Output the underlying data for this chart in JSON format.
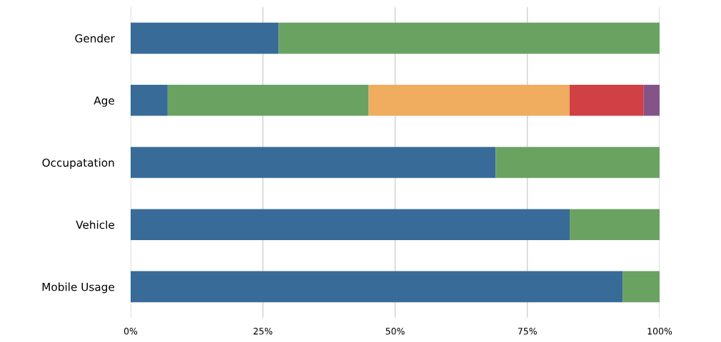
{
  "chart_data": {
    "type": "bar",
    "orientation": "horizontal",
    "stacked": true,
    "categories": [
      "Gender",
      "Age",
      "Occupatation",
      "Vehicle",
      "Mobile Usage"
    ],
    "series": [
      {
        "color": "#386b98",
        "values": [
          28,
          7,
          69,
          83,
          93
        ]
      },
      {
        "color": "#6aa262",
        "values": [
          72,
          38,
          31,
          17,
          7
        ]
      },
      {
        "color": "#f0ac5f",
        "values": [
          null,
          38,
          null,
          null,
          null
        ]
      },
      {
        "color": "#d04044",
        "values": [
          null,
          14,
          null,
          null,
          null
        ]
      },
      {
        "color": "#845489",
        "values": [
          null,
          3,
          null,
          null,
          null
        ]
      }
    ],
    "xlim": [
      0,
      100
    ],
    "xticks": [
      {
        "value": 0,
        "label": "0%"
      },
      {
        "value": 25,
        "label": "25%"
      },
      {
        "value": 50,
        "label": "50%"
      },
      {
        "value": 75,
        "label": "75%"
      },
      {
        "value": 100,
        "label": "100%"
      }
    ],
    "grid": "x",
    "legend": false
  }
}
